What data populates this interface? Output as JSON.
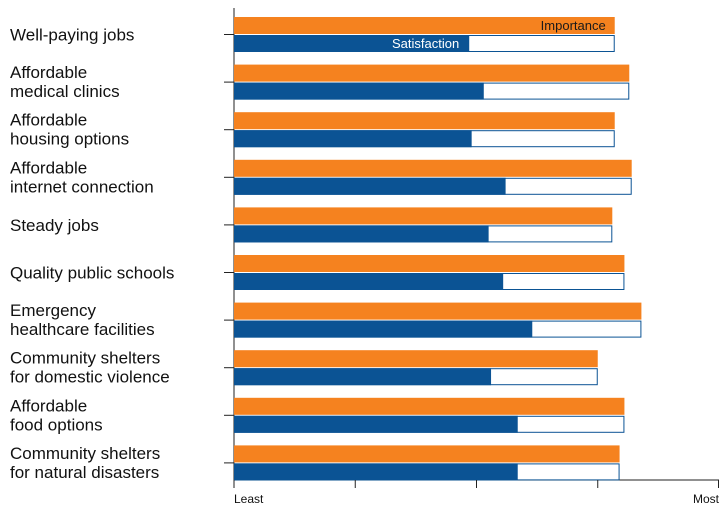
{
  "chart_data": {
    "type": "bar",
    "orientation": "horizontal",
    "categories": [
      [
        "Well-paying jobs"
      ],
      [
        "Affordable",
        "medical clinics"
      ],
      [
        "Affordable",
        "housing options"
      ],
      [
        "Affordable",
        "internet connection"
      ],
      [
        "Steady jobs"
      ],
      [
        "Quality public schools"
      ],
      [
        "Emergency",
        "healthcare facilities"
      ],
      [
        "Community shelters",
        "for domestic violence"
      ],
      [
        "Affordable",
        "food options"
      ],
      [
        "Community shelters",
        "for natural disasters"
      ]
    ],
    "series": [
      {
        "name": "Importance",
        "color": "#f5821f",
        "values": [
          0.785,
          0.815,
          0.785,
          0.82,
          0.78,
          0.805,
          0.84,
          0.75,
          0.805,
          0.795
        ]
      },
      {
        "name": "Satisfaction",
        "color": "#0b5394",
        "values": [
          0.485,
          0.515,
          0.49,
          0.56,
          0.525,
          0.555,
          0.615,
          0.53,
          0.585,
          0.585
        ]
      }
    ],
    "xlim": [
      0,
      1
    ],
    "x_tick_labels": [
      "Least",
      "",
      "",
      "",
      "Most"
    ],
    "legend": "inline labels on first bar pair",
    "grid": false,
    "colors": {
      "importance": "#f5821f",
      "satisfaction": "#0b5394",
      "satisfaction_outline": "#0b5394",
      "axis": "#222222"
    }
  }
}
